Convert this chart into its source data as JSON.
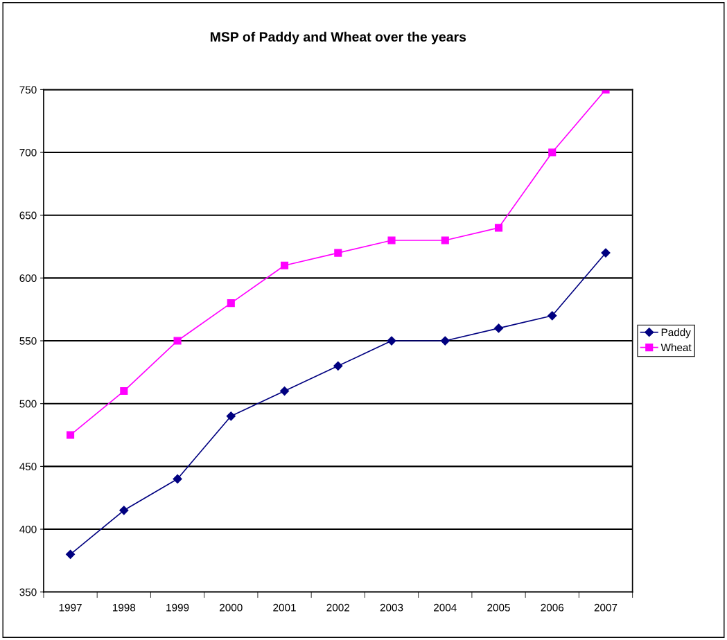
{
  "chart_data": {
    "type": "line",
    "title": "MSP of Paddy and Wheat over the years",
    "categories": [
      "1997",
      "1998",
      "1999",
      "2000",
      "2001",
      "2002",
      "2003",
      "2004",
      "2005",
      "2006",
      "2007"
    ],
    "series": [
      {
        "name": "Paddy",
        "color": "#000080",
        "marker": "diamond",
        "values": [
          380,
          415,
          440,
          490,
          510,
          530,
          550,
          550,
          560,
          570,
          620
        ]
      },
      {
        "name": "Wheat",
        "color": "#ff00ff",
        "marker": "square",
        "values": [
          475,
          510,
          550,
          580,
          610,
          620,
          630,
          630,
          640,
          700,
          750
        ]
      }
    ],
    "ylim": [
      350,
      750
    ],
    "yticks": [
      350,
      400,
      450,
      500,
      550,
      600,
      650,
      700,
      750
    ],
    "grid": "y",
    "legend": "right"
  }
}
